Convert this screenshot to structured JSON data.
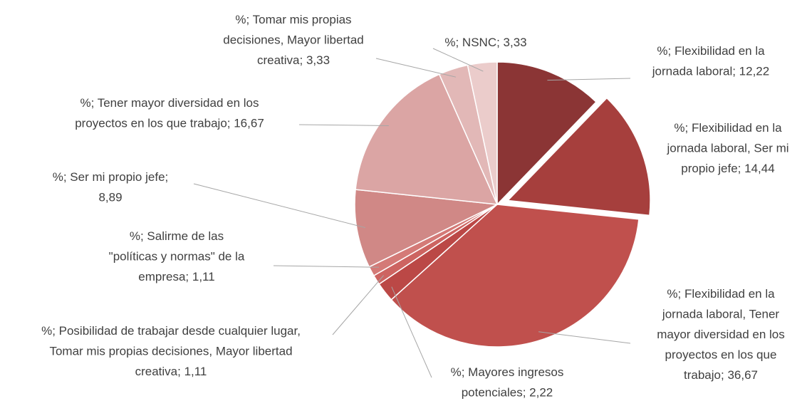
{
  "chart_data": {
    "type": "pie",
    "title": "",
    "slices": [
      {
        "label_lines": [
          "%; Flexibilidad en la",
          "jornada laboral; 12,22"
        ],
        "value": 12.22,
        "color": "#8b3535"
      },
      {
        "label_lines": [
          "%; Flexibilidad en la",
          "jornada laboral, Ser mi",
          "propio jefe; 14,44"
        ],
        "value": 14.44,
        "color": "#a63f3d",
        "exploded": true
      },
      {
        "label_lines": [
          "%; Flexibilidad en la",
          "jornada laboral, Tener",
          "mayor diversidad en los",
          "proyectos en los que",
          "trabajo; 36,67"
        ],
        "value": 36.67,
        "color": "#c0504d"
      },
      {
        "label_lines": [
          "%; Mayores ingresos",
          "potenciales; 2,22"
        ],
        "value": 2.22,
        "color": "#bb4846"
      },
      {
        "label_lines": [
          "%; Posibilidad de trabajar desde cualquier lugar,",
          "Tomar mis propias decisiones, Mayor libertad",
          "creativa; 1,11"
        ],
        "value": 1.11,
        "color": "#cd6461"
      },
      {
        "label_lines": [
          "%; Salirme de las",
          "\"políticas y normas\" de la",
          "empresa; 1,11"
        ],
        "value": 1.11,
        "color": "#d47a77"
      },
      {
        "label_lines": [
          "%; Ser mi propio jefe;",
          "8,89"
        ],
        "value": 8.89,
        "color": "#d08886"
      },
      {
        "label_lines": [
          "%; Tener mayor diversidad en los",
          "proyectos en los que trabajo; 16,67"
        ],
        "value": 16.67,
        "color": "#dba5a4"
      },
      {
        "label_lines": [
          "%; Tomar mis propias",
          "decisiones, Mayor libertad",
          "creativa; 3,33"
        ],
        "value": 3.33,
        "color": "#e2b8b7"
      },
      {
        "label_lines": [
          "%; NSNC; 3,33"
        ],
        "value": 3.33,
        "color": "#ebcccb"
      }
    ]
  }
}
